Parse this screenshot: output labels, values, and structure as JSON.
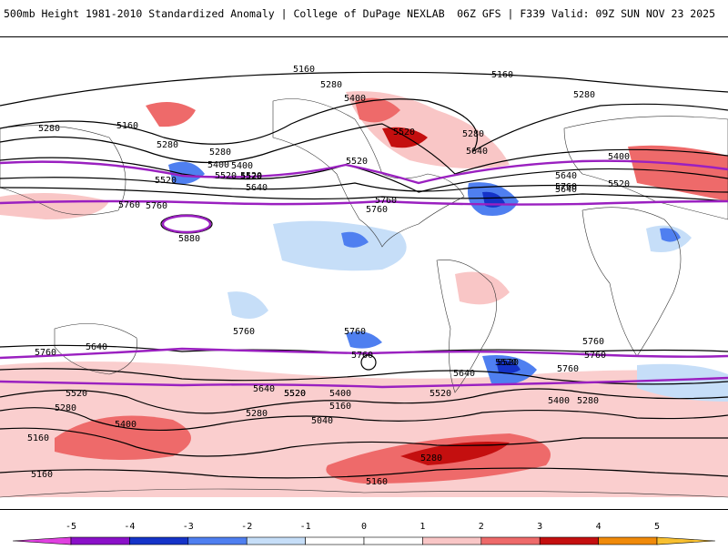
{
  "header": {
    "title": "500mb Height 1981-2010 Standardized Anomaly | College of DuPage NEXLAB",
    "run_info": "06Z GFS | F339 Valid: 09Z SUN NOV 23 2025"
  },
  "colors": {
    "strong_pos": "#c40f0f",
    "pos": "#ee6a6a",
    "weak_pos": "#f9c6c6",
    "weak_neg": "#c6def8",
    "neg": "#4f7ff0",
    "strong_neg": "#1533c8",
    "contour": "#000000",
    "highlight_contour": "#9a20c0"
  },
  "map": {
    "contour_labels": [
      "5160",
      "5160",
      "5280",
      "5400",
      "5520",
      "5280",
      "5640",
      "5520",
      "5760",
      "5640",
      "5760",
      "5280",
      "5160",
      "5280",
      "5280",
      "5400",
      "5520",
      "5520",
      "5640",
      "5760",
      "5760",
      "5880",
      "5520",
      "5400",
      "5280",
      "5400",
      "5640",
      "5520",
      "5760",
      "5520",
      "5760",
      "5760",
      "5640",
      "5760",
      "5760",
      "5760",
      "5640",
      "5520",
      "5520",
      "5520",
      "5640",
      "5520",
      "5400",
      "5160",
      "5040",
      "5280",
      "5400",
      "5280",
      "5160",
      "5160",
      "5280",
      "5160",
      "5400",
      "5280",
      "5520",
      "5760",
      "5520",
      "5760"
    ]
  },
  "colorbar": {
    "ticks": [
      "-5",
      "-4",
      "-3",
      "-2",
      "-1",
      "0",
      "1",
      "2",
      "3",
      "4",
      "5"
    ],
    "colors": [
      "#e040e0",
      "#8a10c8",
      "#1533c8",
      "#4f7ff0",
      "#c6def8",
      "#ffffff",
      "#ffffff",
      "#f9c6c6",
      "#ee6a6a",
      "#c40f0f",
      "#f08a0a",
      "#f8c030"
    ]
  }
}
